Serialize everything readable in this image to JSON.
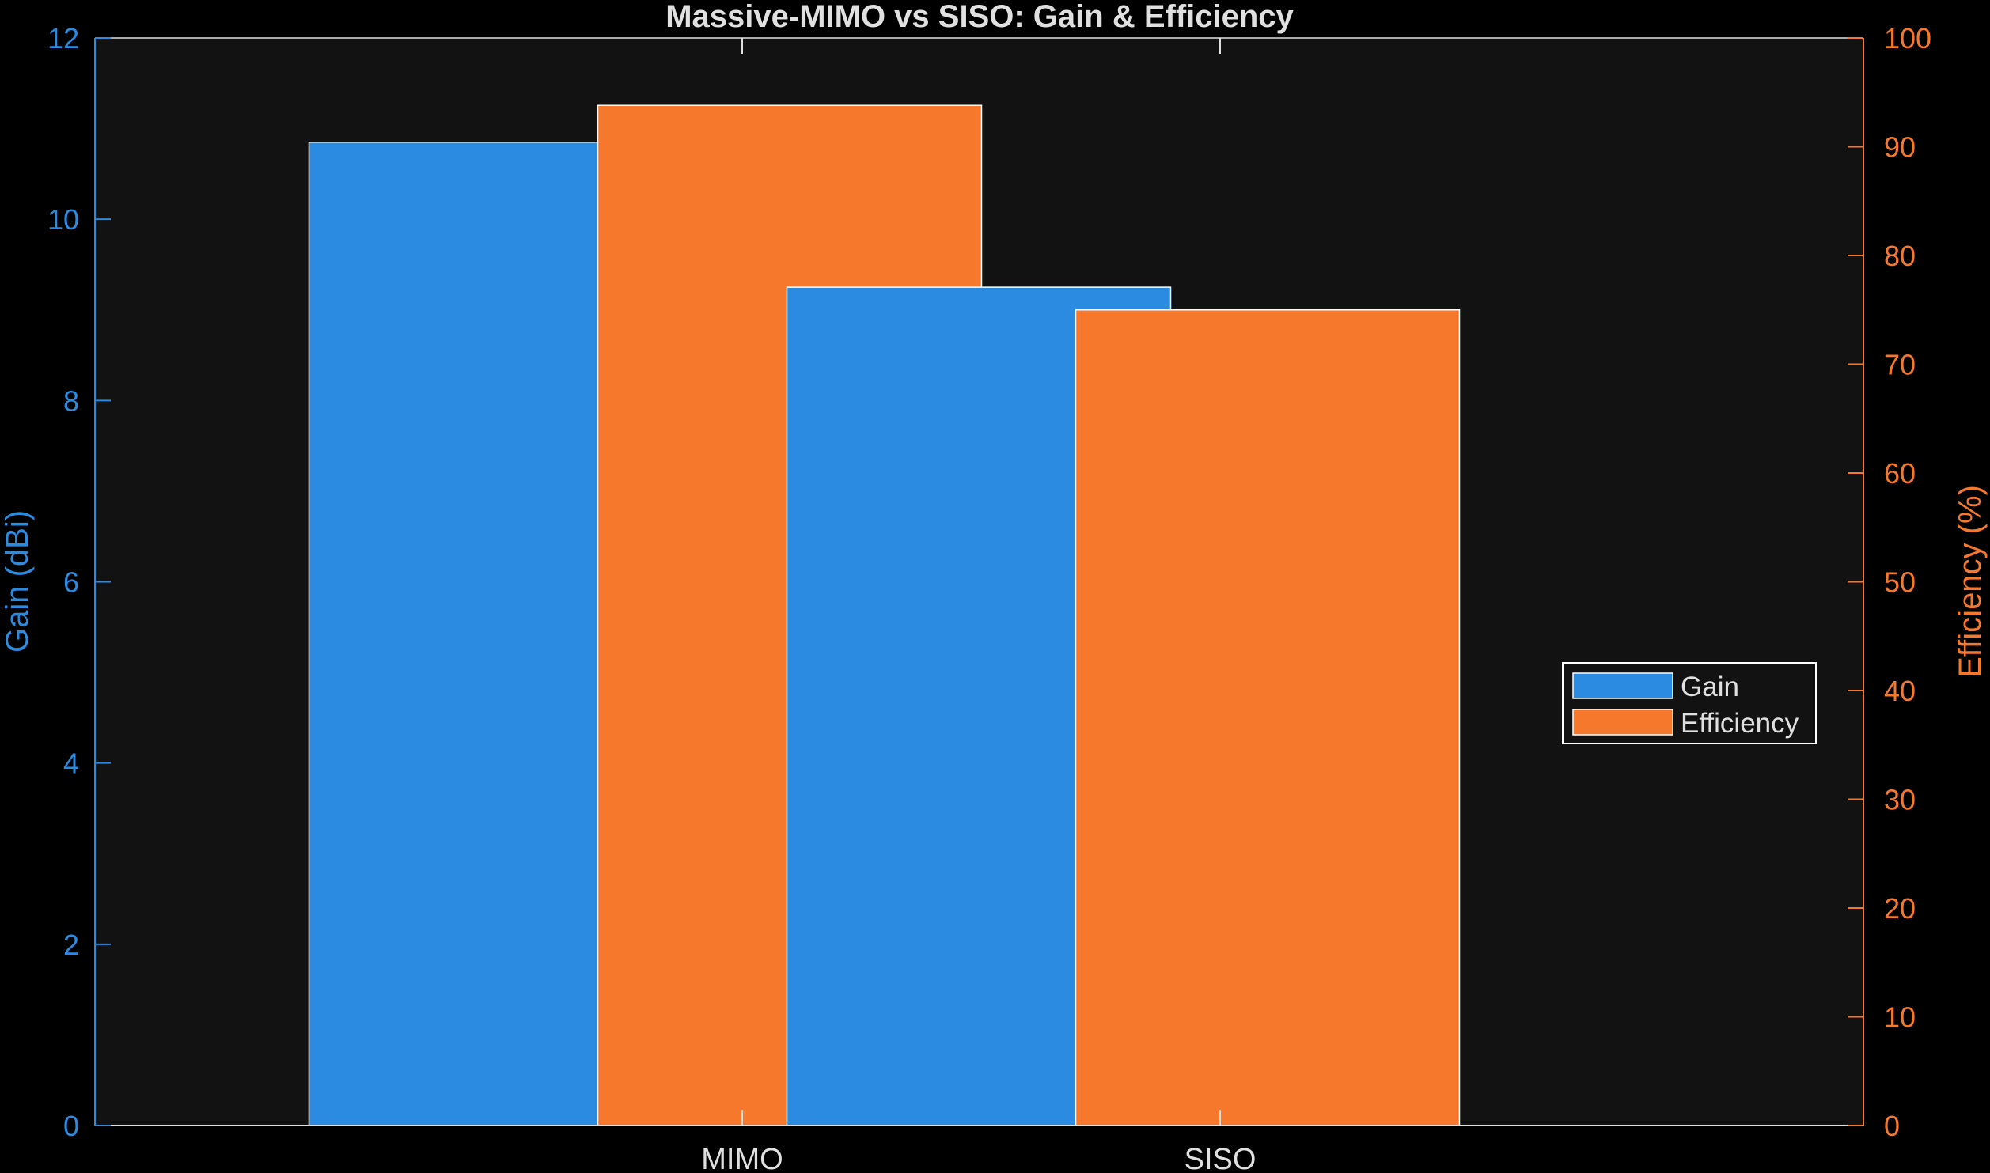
{
  "chart_data": {
    "type": "bar",
    "title": "Massive-MIMO vs SISO: Gain & Efficiency",
    "categories": [
      "MIMO",
      "SISO"
    ],
    "series": [
      {
        "name": "Gain",
        "axis": "left",
        "values": [
          10.85,
          9.25
        ],
        "color": "#2a8be0"
      },
      {
        "name": "Efficiency",
        "axis": "right",
        "values": [
          93.8,
          75.0
        ],
        "color": "#f5782d"
      }
    ],
    "y_left": {
      "label": "Gain (dBi)",
      "lim": [
        0,
        12
      ],
      "ticks": [
        "0",
        "2",
        "4",
        "6",
        "8",
        "10",
        "12"
      ],
      "color": "#2a8be0"
    },
    "y_right": {
      "label": "Efficiency (%)",
      "lim": [
        0,
        100
      ],
      "ticks": [
        "0",
        "10",
        "20",
        "30",
        "40",
        "50",
        "60",
        "70",
        "80",
        "90",
        "100"
      ],
      "color": "#f5782d"
    },
    "grid": false,
    "legend_position": "right",
    "background": "#121212",
    "text_color": "#e0e0e0"
  }
}
